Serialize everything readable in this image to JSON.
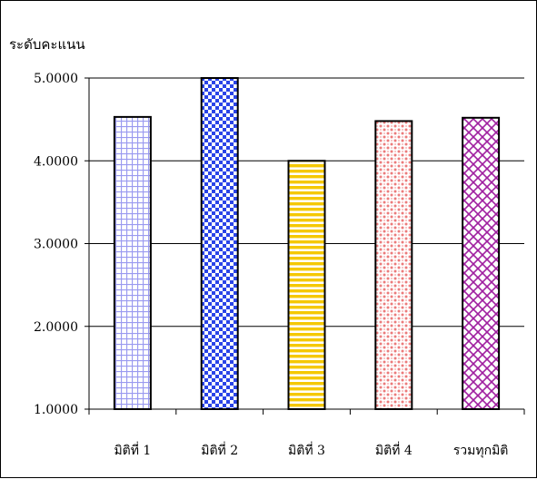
{
  "chart_data": {
    "type": "bar",
    "title": "",
    "xlabel": "",
    "ylabel": "ระดับคะแนน",
    "categories": [
      "มิติที่ 1",
      "มิติที่ 2",
      "มิติที่ 3",
      "มิติที่ 4",
      "รวมทุกมิติ"
    ],
    "values": [
      4.53,
      5.0,
      4.0,
      4.48,
      4.52
    ],
    "ylim": [
      1.0,
      5.0
    ],
    "yticks": [
      {
        "value": 1.0,
        "label": "1.0000"
      },
      {
        "value": 2.0,
        "label": "2.0000"
      },
      {
        "value": 3.0,
        "label": "3.0000"
      },
      {
        "value": 4.0,
        "label": "4.0000"
      },
      {
        "value": 5.0,
        "label": "5.0000"
      }
    ],
    "grid": true,
    "legend": "none",
    "bar_fills": [
      {
        "pattern": "grid",
        "color": "#9a9af0"
      },
      {
        "pattern": "checker",
        "color": "#2a44e8"
      },
      {
        "pattern": "horizontal-stripes",
        "color": "#f5c800"
      },
      {
        "pattern": "dots",
        "color": "#ec7b7b"
      },
      {
        "pattern": "diagonal-lattice",
        "color": "#a020a0"
      }
    ]
  }
}
